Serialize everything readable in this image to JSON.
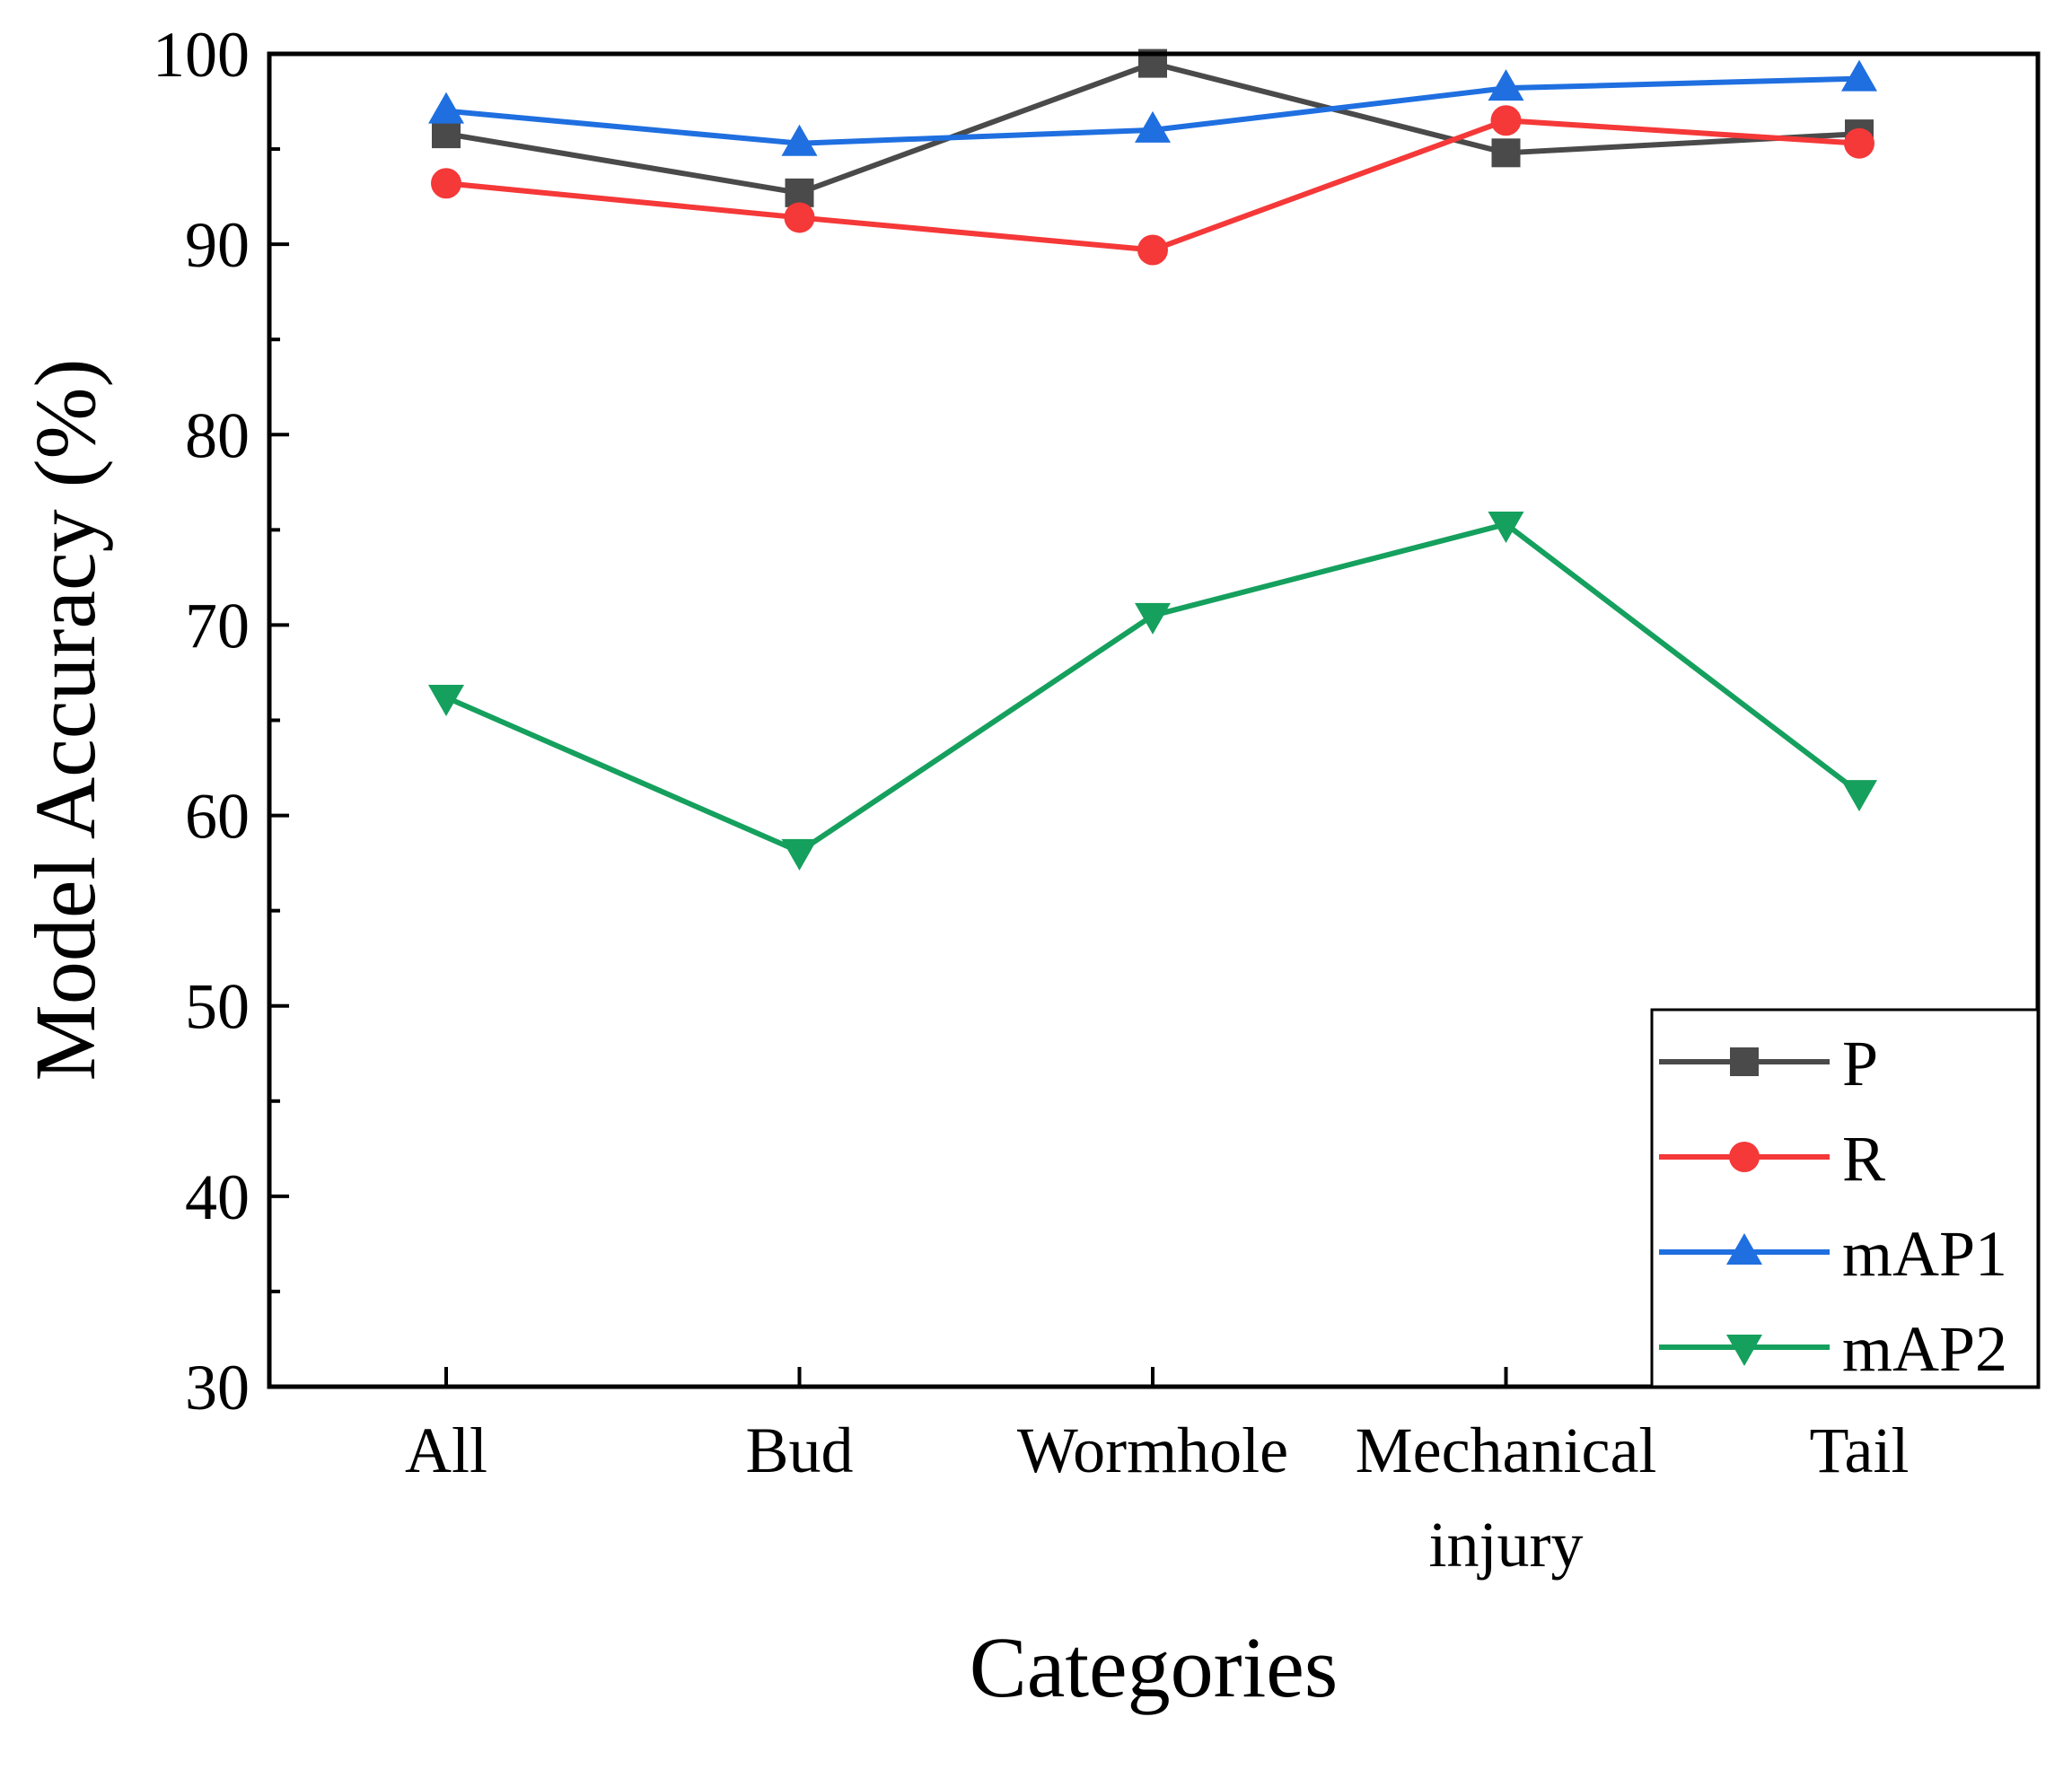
{
  "chart_data": {
    "type": "line",
    "title": "",
    "xlabel": "Categories",
    "ylabel": "Model Accuracy (%)",
    "categories": [
      "All",
      "Bud",
      "Wormhole",
      "Mechanical injury",
      "Tail"
    ],
    "category_label_lines": [
      [
        "All"
      ],
      [
        "Bud"
      ],
      [
        "Wormhole"
      ],
      [
        "Mechanical",
        "injury"
      ],
      [
        "Tail"
      ]
    ],
    "ylim": [
      30,
      100
    ],
    "yticks": [
      30,
      40,
      50,
      60,
      70,
      80,
      90,
      100
    ],
    "grid": false,
    "legend_position": "bottom-right",
    "series": [
      {
        "name": "P",
        "color": "#4a4a4a",
        "marker": "square",
        "values": [
          95.8,
          92.7,
          99.5,
          94.8,
          95.8
        ]
      },
      {
        "name": "R",
        "color": "#f53838",
        "marker": "circle",
        "values": [
          93.2,
          91.4,
          89.7,
          96.5,
          95.3
        ]
      },
      {
        "name": "mAP1",
        "color": "#1f6fe0",
        "marker": "triangle-up",
        "values": [
          97.0,
          95.3,
          96.0,
          98.2,
          98.7
        ]
      },
      {
        "name": "mAP2",
        "color": "#15a05e",
        "marker": "triangle-down",
        "values": [
          66.2,
          58.1,
          70.5,
          75.3,
          61.2
        ]
      }
    ]
  }
}
